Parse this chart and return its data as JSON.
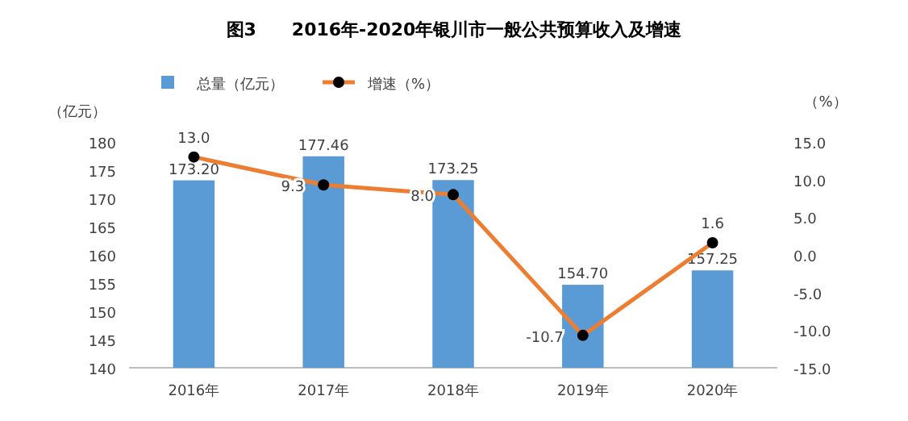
{
  "chart_data": {
    "type": "bar",
    "title": "图3　　2016年-2020年银川市一般公共预算收入及增速",
    "categories": [
      "2016年",
      "2017年",
      "2018年",
      "2019年",
      "2020年"
    ],
    "series": [
      {
        "name": "总量（亿元）",
        "color": "#5b9bd5",
        "values": [
          173.2,
          177.46,
          173.25,
          154.7,
          157.25
        ],
        "value_labels": [
          "173.20",
          "177.46",
          "173.25",
          "154.70",
          "157.25"
        ]
      },
      {
        "name": "增速（%）",
        "type": "line",
        "axis": "y2",
        "color": "#ed7d31",
        "marker": "circle",
        "values": [
          13.0,
          9.3,
          8.0,
          -10.7,
          1.6
        ],
        "value_labels": [
          "13.0",
          "9.3",
          "8.0",
          "-10.7",
          "1.6"
        ]
      }
    ],
    "ylabel": "（亿元）",
    "y2label": "（%）",
    "ylim": [
      140,
      180
    ],
    "yticks": [
      140,
      145,
      150,
      155,
      160,
      165,
      170,
      175,
      180
    ],
    "y2lim": [
      -15,
      15
    ],
    "y2ticks": [
      {
        "value": -15,
        "label": "-15.0"
      },
      {
        "value": -10,
        "label": "-10.0"
      },
      {
        "value": -5,
        "label": "-5.0"
      },
      {
        "value": 0,
        "label": "0.0"
      },
      {
        "value": 5,
        "label": "5.0"
      },
      {
        "value": 10,
        "label": "10.0"
      },
      {
        "value": 15,
        "label": "15.0"
      }
    ],
    "legend": "top left"
  }
}
